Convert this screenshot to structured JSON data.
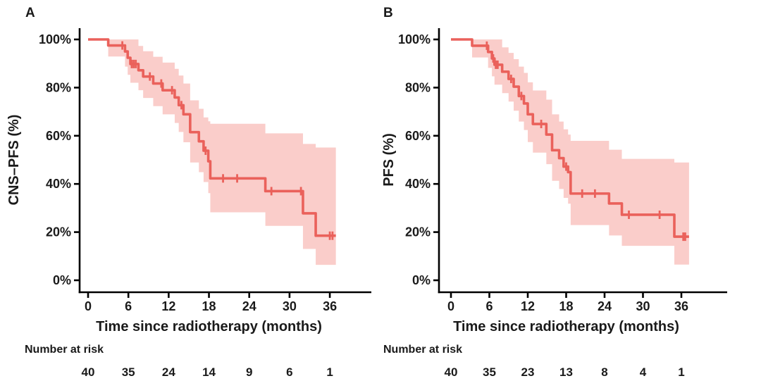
{
  "figure": {
    "background": "#ffffff",
    "text_color": "#1a1a1a",
    "axis_color": "#000000"
  },
  "chart_data": [
    {
      "type": "line",
      "subtype": "kaplan-meier-step-curve-with-confidence-band",
      "panel_label": "A",
      "xlabel": "Time since radiotherapy (months)",
      "ylabel": "CNS–PFS (%)",
      "xlim": [
        0,
        42
      ],
      "ylim": [
        0,
        100
      ],
      "grid": false,
      "legend": "none",
      "x_ticks": [
        0,
        6,
        12,
        18,
        24,
        30,
        36
      ],
      "y_ticks": [
        {
          "value": 100,
          "label": "100%"
        },
        {
          "value": 80,
          "label": "80%"
        },
        {
          "value": 60,
          "label": "60%"
        },
        {
          "value": 40,
          "label": "40%"
        },
        {
          "value": 20,
          "label": "20%"
        },
        {
          "value": 0,
          "label": "0%"
        }
      ],
      "line_color": "#EA615B",
      "band_color": "#FACDCA",
      "end_time": 36.9,
      "steps": [
        [
          0.0,
          100.0,
          100.0,
          100.0
        ],
        [
          3.0,
          97.5,
          92.9,
          100.0
        ],
        [
          5.5,
          95.0,
          88.7,
          100.0
        ],
        [
          5.9,
          92.4,
          85.3,
          100.0
        ],
        [
          6.3,
          89.8,
          82.0,
          100.0
        ],
        [
          7.5,
          87.2,
          78.9,
          97.3
        ],
        [
          8.2,
          84.6,
          75.7,
          95.1
        ],
        [
          9.7,
          81.7,
          72.3,
          92.8
        ],
        [
          11.1,
          78.9,
          68.9,
          90.4
        ],
        [
          12.9,
          75.9,
          65.3,
          87.8
        ],
        [
          13.5,
          72.7,
          61.6,
          85.0
        ],
        [
          14.2,
          68.9,
          57.3,
          81.7
        ],
        [
          15.2,
          61.5,
          48.9,
          74.7
        ],
        [
          16.5,
          57.7,
          44.9,
          71.2
        ],
        [
          17.2,
          53.8,
          40.8,
          67.6
        ],
        [
          17.9,
          49.4,
          36.2,
          66.0
        ],
        [
          18.2,
          42.3,
          28.2,
          65.0
        ],
        [
          26.4,
          37.0,
          22.6,
          61.0
        ],
        [
          32.0,
          27.8,
          13.0,
          56.6
        ],
        [
          33.9,
          18.5,
          6.4,
          55.1
        ]
      ],
      "censor_marks": [
        [
          5.1,
          97.5
        ],
        [
          6.5,
          89.8
        ],
        [
          6.8,
          89.8
        ],
        [
          7.1,
          89.8
        ],
        [
          9.2,
          84.6
        ],
        [
          10.9,
          81.7
        ],
        [
          12.5,
          78.9
        ],
        [
          13.9,
          72.7
        ],
        [
          17.5,
          53.8
        ],
        [
          20.1,
          42.3
        ],
        [
          22.2,
          42.3
        ],
        [
          27.3,
          37.0
        ],
        [
          31.7,
          37.0
        ],
        [
          36.0,
          18.5
        ],
        [
          36.4,
          18.5
        ]
      ],
      "risk_table": {
        "label": "Number at risk",
        "times": [
          0,
          6,
          12,
          18,
          24,
          30,
          36
        ],
        "counts": [
          40,
          35,
          24,
          14,
          9,
          6,
          1
        ]
      }
    },
    {
      "type": "line",
      "subtype": "kaplan-meier-step-curve-with-confidence-band",
      "panel_label": "B",
      "xlabel": "Time since radiotherapy (months)",
      "ylabel": "PFS (%)",
      "xlim": [
        0,
        42
      ],
      "ylim": [
        0,
        100
      ],
      "grid": false,
      "legend": "none",
      "x_ticks": [
        0,
        6,
        12,
        18,
        24,
        30,
        36
      ],
      "y_ticks": [
        {
          "value": 100,
          "label": "100%"
        },
        {
          "value": 80,
          "label": "80%"
        },
        {
          "value": 60,
          "label": "60%"
        },
        {
          "value": 40,
          "label": "40%"
        },
        {
          "value": 20,
          "label": "20%"
        },
        {
          "value": 0,
          "label": "0%"
        }
      ],
      "line_color": "#EA615B",
      "band_color": "#FACDCA",
      "end_time": 37.2,
      "steps": [
        [
          0.0,
          100.0,
          100.0,
          100.0
        ],
        [
          3.3,
          97.4,
          92.5,
          100.0
        ],
        [
          5.8,
          94.8,
          88.2,
          100.0
        ],
        [
          6.4,
          92.1,
          84.7,
          100.0
        ],
        [
          6.8,
          89.5,
          81.2,
          100.0
        ],
        [
          8.0,
          86.6,
          77.7,
          96.7
        ],
        [
          9.0,
          83.6,
          74.2,
          94.4
        ],
        [
          9.8,
          80.4,
          70.4,
          91.8
        ],
        [
          10.6,
          76.5,
          65.9,
          88.7
        ],
        [
          11.4,
          73.4,
          62.4,
          86.1
        ],
        [
          12.0,
          68.9,
          57.4,
          82.2
        ],
        [
          12.8,
          64.9,
          53.0,
          78.8
        ],
        [
          14.9,
          60.5,
          48.2,
          75.0
        ],
        [
          15.8,
          54.0,
          41.3,
          68.9
        ],
        [
          16.9,
          50.7,
          37.9,
          65.9
        ],
        [
          17.6,
          47.2,
          34.2,
          62.7
        ],
        [
          18.3,
          44.9,
          31.8,
          60.5
        ],
        [
          18.7,
          36.0,
          22.9,
          57.9
        ],
        [
          24.7,
          31.9,
          18.6,
          54.2
        ],
        [
          26.7,
          27.2,
          14.3,
          50.4
        ],
        [
          34.9,
          18.1,
          6.5,
          48.9
        ]
      ],
      "censor_marks": [
        [
          5.6,
          97.4
        ],
        [
          6.6,
          92.1
        ],
        [
          7.0,
          89.5
        ],
        [
          7.3,
          89.5
        ],
        [
          9.4,
          83.6
        ],
        [
          11.0,
          76.5
        ],
        [
          14.1,
          64.9
        ],
        [
          18.0,
          47.2
        ],
        [
          20.5,
          36.0
        ],
        [
          22.5,
          36.0
        ],
        [
          27.8,
          27.2
        ],
        [
          32.6,
          27.2
        ],
        [
          36.3,
          18.1
        ],
        [
          36.6,
          18.1
        ]
      ],
      "risk_table": {
        "label": "Number at risk",
        "times": [
          0,
          6,
          12,
          18,
          24,
          30,
          36
        ],
        "counts": [
          40,
          35,
          23,
          13,
          8,
          4,
          1
        ]
      }
    }
  ]
}
